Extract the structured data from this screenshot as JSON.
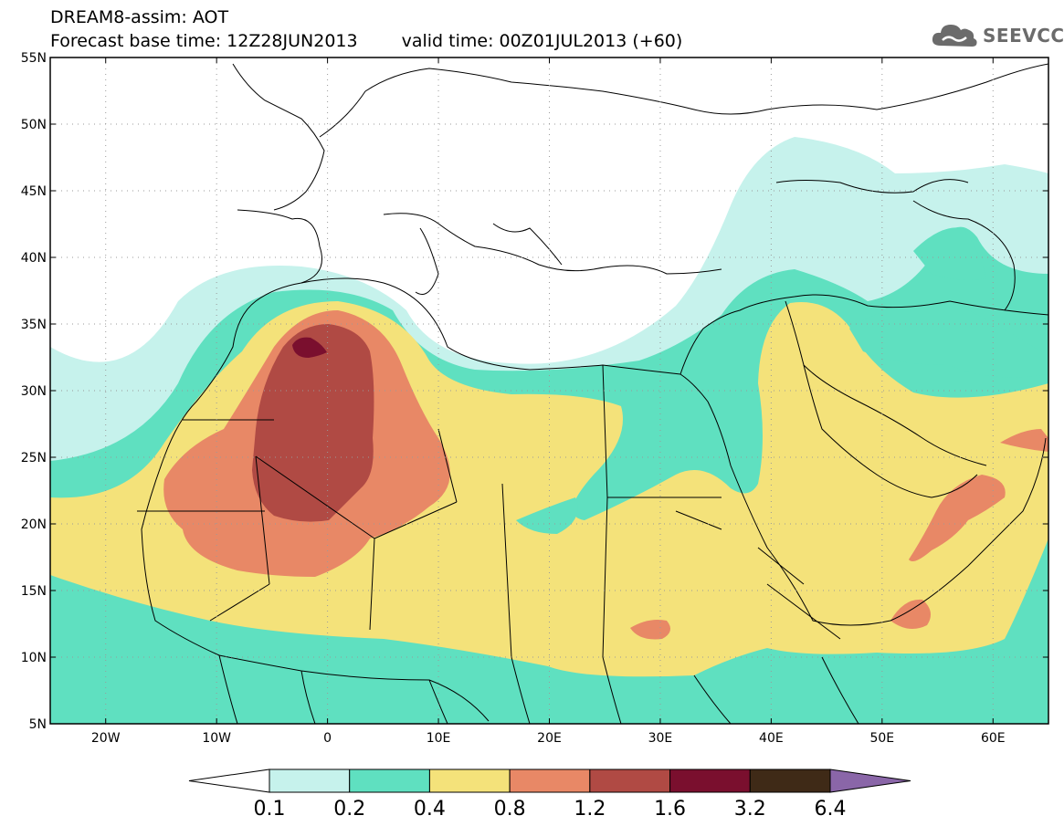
{
  "header": {
    "title": "DREAM8-assim: AOT",
    "base_time": "Forecast base time: 12Z28JUN2013",
    "valid_time": "valid time: 00Z01JUL2013 (+60)"
  },
  "logo": {
    "text": "SEEVCCC",
    "icon": "cloud-icon"
  },
  "map": {
    "lon_labels": [
      "20W",
      "10W",
      "0",
      "10E",
      "20E",
      "30E",
      "40E",
      "50E",
      "60E"
    ],
    "lat_labels": [
      "55N",
      "50N",
      "45N",
      "40N",
      "35N",
      "30N",
      "25N",
      "20N",
      "15N",
      "10N",
      "5N"
    ],
    "lon_values": [
      -20,
      -10,
      0,
      10,
      20,
      30,
      40,
      50,
      60
    ],
    "lat_values": [
      55,
      50,
      45,
      40,
      35,
      30,
      25,
      20,
      15,
      10,
      5
    ],
    "lon_range": [
      -25,
      65
    ],
    "lat_range": [
      5,
      55
    ],
    "grid": "dotted"
  },
  "colorbar": {
    "labels": [
      "0.1",
      "0.2",
      "0.4",
      "0.8",
      "1.2",
      "1.6",
      "3.2",
      "6.4"
    ],
    "colors": [
      "#ffffff",
      "#c6f2ec",
      "#5fe0c0",
      "#f4e27a",
      "#e88866",
      "#b04a44",
      "#7a0f2e",
      "#3f2a17",
      "#8a66a8"
    ]
  }
}
